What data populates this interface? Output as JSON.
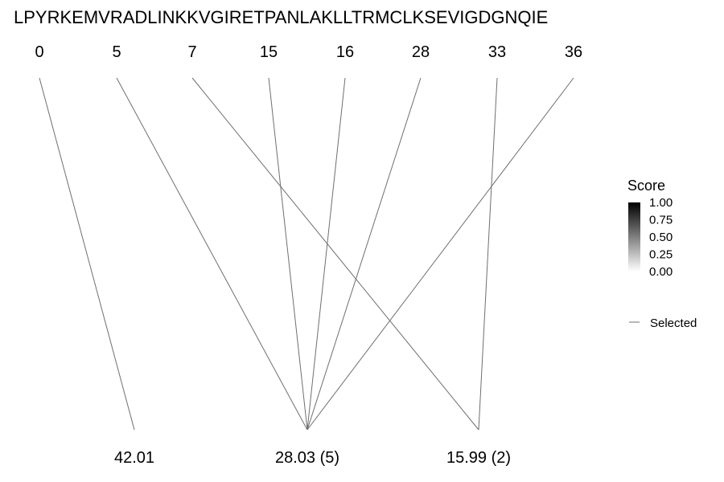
{
  "chart_data": {
    "type": "bipartite-lines",
    "title": "LPYRKEMVRADLINKKVGIRETPANLAKLLTRMCLKSEVIGDGNQIE",
    "top_labels": [
      "0",
      "5",
      "7",
      "15",
      "16",
      "28",
      "33",
      "36"
    ],
    "bottom_labels": [
      "42.01",
      "28.03 (5)",
      "15.99 (2)"
    ],
    "links": [
      {
        "from": "0",
        "to": "42.01",
        "score": 1.0,
        "selected": true
      },
      {
        "from": "5",
        "to": "28.03 (5)",
        "score": 1.0,
        "selected": true
      },
      {
        "from": "7",
        "to": "15.99 (2)",
        "score": 1.0,
        "selected": true
      },
      {
        "from": "15",
        "to": "28.03 (5)",
        "score": 1.0,
        "selected": true
      },
      {
        "from": "16",
        "to": "28.03 (5)",
        "score": 1.0,
        "selected": true
      },
      {
        "from": "28",
        "to": "28.03 (5)",
        "score": 1.0,
        "selected": true
      },
      {
        "from": "33",
        "to": "15.99 (2)",
        "score": 1.0,
        "selected": true
      },
      {
        "from": "36",
        "to": "28.03 (5)",
        "score": 1.0,
        "selected": true
      }
    ],
    "legend": {
      "score_title": "Score",
      "score_ticks": [
        "1.00",
        "0.75",
        "0.50",
        "0.25",
        "0.00"
      ],
      "score_range": [
        0,
        1
      ],
      "gradient_colors": [
        "#ffffff",
        "#000000"
      ],
      "selected_label": "Selected",
      "position": "right"
    },
    "line_color": "#6f6f6f"
  }
}
